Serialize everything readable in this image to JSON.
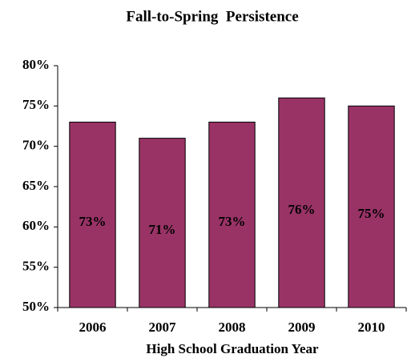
{
  "chart_data": {
    "type": "bar",
    "title": "Fall-to-Spring  Persistence",
    "xlabel": "High School Graduation Year",
    "categories": [
      "2006",
      "2007",
      "2008",
      "2009",
      "2010"
    ],
    "values": [
      73,
      71,
      73,
      76,
      75
    ],
    "value_labels": [
      "73%",
      "71%",
      "73%",
      "76%",
      "75%"
    ],
    "color": "#993366",
    "ylim": [
      50,
      80
    ],
    "yticks": [
      {
        "value": 50,
        "label": "50%"
      },
      {
        "value": 55,
        "label": "55%"
      },
      {
        "value": 60,
        "label": "60%"
      },
      {
        "value": 65,
        "label": "65%"
      },
      {
        "value": 70,
        "label": "70%"
      },
      {
        "value": 75,
        "label": "75%"
      },
      {
        "value": 80,
        "label": "80%"
      }
    ],
    "grid": false
  }
}
